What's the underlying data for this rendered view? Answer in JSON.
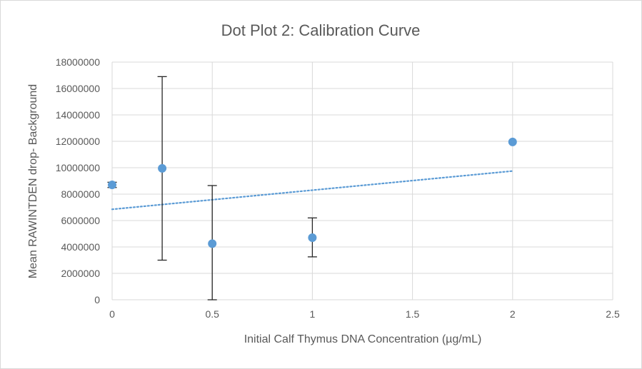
{
  "chart_data": {
    "type": "scatter",
    "title": "Dot Plot 2: Calibration Curve",
    "xlabel": "Initial Calf Thymus DNA Concentration (µg/mL)",
    "ylabel": "Mean RAWINTDEN drop- Background",
    "xlim": [
      0,
      2.5
    ],
    "ylim": [
      0,
      18000000
    ],
    "x_ticks": [
      0,
      0.5,
      1,
      1.5,
      2,
      2.5
    ],
    "x_tick_labels": [
      "0",
      "0.5",
      "1",
      "1.5",
      "2",
      "2.5"
    ],
    "y_ticks": [
      0,
      2000000,
      4000000,
      6000000,
      8000000,
      10000000,
      12000000,
      14000000,
      16000000,
      18000000
    ],
    "y_tick_labels": [
      "0",
      "2000000",
      "4000000",
      "6000000",
      "8000000",
      "10000000",
      "12000000",
      "14000000",
      "16000000",
      "18000000"
    ],
    "grid": true,
    "series": [
      {
        "name": "Mean RAWINTDEN drop- Background",
        "color": "#5b9bd5",
        "x": [
          0,
          0.25,
          0.5,
          1,
          2
        ],
        "y": [
          8700000,
          9950000,
          4250000,
          4700000,
          11950000
        ],
        "error_low": [
          8500000,
          3000000,
          0,
          3250000,
          11950000
        ],
        "error_high": [
          8900000,
          16900000,
          8650000,
          6200000,
          11950000
        ]
      }
    ],
    "trendline": {
      "type": "linear",
      "style": "dotted",
      "color": "#5b9bd5",
      "x": [
        0,
        2
      ],
      "y": [
        6850000,
        9750000
      ]
    }
  }
}
